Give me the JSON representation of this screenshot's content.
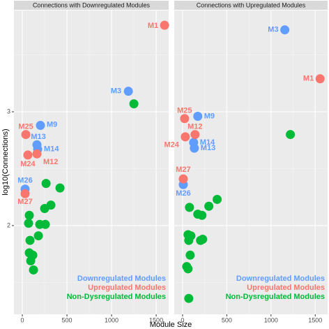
{
  "chart_data": [
    {
      "type": "scatter",
      "title": "Connections with Downregulated Modules",
      "xlabel": "Module Size",
      "ylabel": "log10(Connections)",
      "xlim": [
        -94,
        1640
      ],
      "ylim": [
        1.22,
        3.89
      ],
      "xticks": [
        0,
        500,
        1000,
        1500
      ],
      "yticks": [
        2,
        3
      ],
      "grid": true,
      "series": [
        {
          "name": "Downregulated Modules",
          "color": "#619cff",
          "labels": [
            "M3",
            "M9",
            "M13",
            "M14",
            "M26"
          ],
          "x": [
            1188,
            203,
            164,
            172,
            31
          ],
          "values": [
            3.18,
            2.88,
            2.71,
            2.67,
            2.32
          ]
        },
        {
          "name": "Upregulated Modules",
          "color": "#f8766d",
          "labels": [
            "M1",
            "M25",
            "M24",
            "M12",
            "M27"
          ],
          "x": [
            1594,
            39,
            62,
            164,
            31
          ],
          "values": [
            3.76,
            2.8,
            2.62,
            2.63,
            2.28
          ]
        },
        {
          "name": "Non-Dysregulated Modules",
          "color": "#00ba38",
          "x": [
            1250,
            266,
            422,
            250,
            320,
            78,
            70,
            195,
            258,
            180,
            86,
            78,
            117,
            94,
            125
          ],
          "values": [
            3.07,
            2.37,
            2.33,
            2.15,
            2.18,
            2.09,
            2.02,
            2.01,
            2.01,
            1.91,
            1.87,
            1.76,
            1.74,
            1.69,
            1.61
          ]
        }
      ]
    },
    {
      "type": "scatter",
      "title": "Connections with Upregulated Modules",
      "xlim": [
        -94,
        1640
      ],
      "ylim": [
        1.22,
        3.89
      ],
      "xticks": [
        0,
        500,
        1000,
        1500
      ],
      "yticks": [
        2,
        3
      ],
      "grid": true,
      "series": [
        {
          "name": "Downregulated Modules",
          "color": "#619cff",
          "labels": [
            "M3",
            "M9",
            "M14",
            "M13",
            "M26"
          ],
          "x": [
            1156,
            172,
            125,
            133,
            8
          ],
          "values": [
            3.72,
            2.96,
            2.73,
            2.68,
            2.36
          ]
        },
        {
          "name": "Upregulated Modules",
          "color": "#f8766d",
          "labels": [
            "M1",
            "M25",
            "M12",
            "M24",
            "M27"
          ],
          "x": [
            1555,
            23,
            141,
            31,
            8
          ],
          "values": [
            3.29,
            2.94,
            2.8,
            2.78,
            2.41
          ]
        },
        {
          "name": "Non-Dysregulated Modules",
          "color": "#00ba38",
          "x": [
            1219,
            391,
            297,
            78,
            172,
            219,
            62,
            94,
            70,
            227,
            203,
            86,
            47,
            62,
            70
          ],
          "values": [
            2.8,
            2.23,
            2.17,
            2.16,
            2.1,
            2.09,
            1.92,
            1.91,
            1.87,
            1.88,
            1.87,
            1.74,
            1.64,
            1.62,
            1.36
          ]
        }
      ]
    }
  ]
}
